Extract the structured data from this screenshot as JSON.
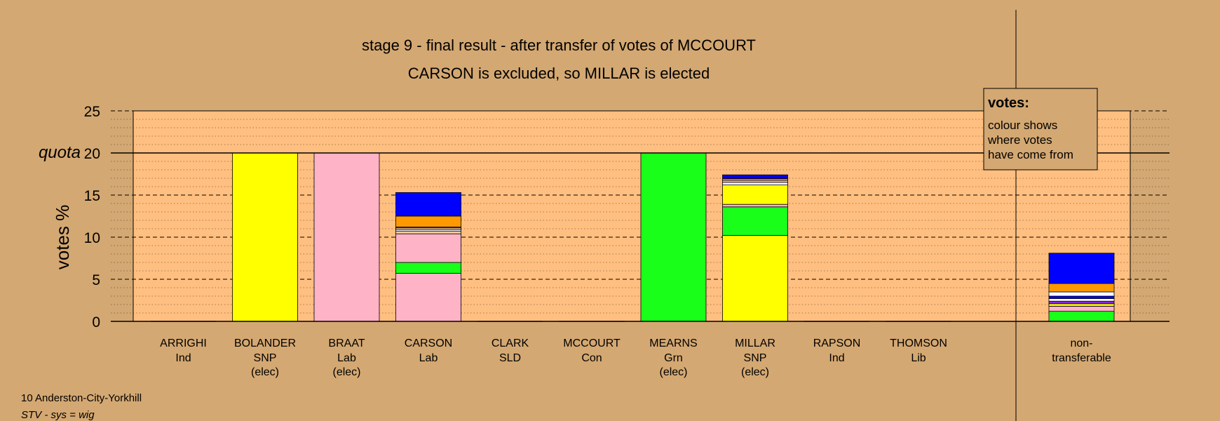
{
  "chart_data": {
    "type": "bar",
    "stacked": true,
    "title": "stage 9 - final result - after transfer of votes of MCCOURT",
    "subtitle": "CARSON is excluded, so MILLAR is elected",
    "ylabel": "votes %",
    "ylim": [
      0,
      25
    ],
    "yticks": [
      0,
      5,
      10,
      15,
      20,
      25
    ],
    "quota": 20,
    "quota_label": "quota",
    "grid": true,
    "legend": {
      "position": "top-right",
      "heading": "votes:",
      "lines": [
        "colour shows",
        "where votes",
        "have come from"
      ]
    },
    "colors": {
      "SNP": "#ffff00",
      "Lab": "#ffb3c6",
      "Grn": "#19ff19",
      "Lib": "#ff9900",
      "Con": "#0000ff",
      "Ind": "#ffffff",
      "SLD": "#8a2be2",
      "Other": "#ffcc99"
    },
    "candidates": [
      {
        "name": "ARRIGHI",
        "party": "Ind",
        "status": "",
        "segments": []
      },
      {
        "name": "BOLANDER",
        "party": "SNP",
        "status": "(elec)",
        "segments": [
          {
            "from": "SNP",
            "value": 20
          }
        ]
      },
      {
        "name": "BRAAT",
        "party": "Lab",
        "status": "(elec)",
        "segments": [
          {
            "from": "Lab",
            "value": 20
          }
        ]
      },
      {
        "name": "CARSON",
        "party": "Lab",
        "status": "",
        "segments": [
          {
            "from": "Lab",
            "value": 5.7
          },
          {
            "from": "Grn",
            "value": 1.3
          },
          {
            "from": "Lab",
            "value": 3.4
          },
          {
            "from": "Other",
            "value": 0.3
          },
          {
            "from": "Ind",
            "value": 0.2
          },
          {
            "from": "Other",
            "value": 0.2
          },
          {
            "from": "SLD",
            "value": 0.1
          },
          {
            "from": "Lib",
            "value": 1.3
          },
          {
            "from": "Con",
            "value": 2.8
          }
        ]
      },
      {
        "name": "CLARK",
        "party": "SLD",
        "status": "",
        "segments": []
      },
      {
        "name": "MCCOURT",
        "party": "Con",
        "status": "",
        "segments": []
      },
      {
        "name": "MEARNS",
        "party": "Grn",
        "status": "(elec)",
        "segments": [
          {
            "from": "Grn",
            "value": 20
          }
        ]
      },
      {
        "name": "MILLAR",
        "party": "SNP",
        "status": "(elec)",
        "segments": [
          {
            "from": "SNP",
            "value": 10.2
          },
          {
            "from": "Grn",
            "value": 3.4
          },
          {
            "from": "Lab",
            "value": 0.3
          },
          {
            "from": "SNP",
            "value": 2.3
          },
          {
            "from": "Ind",
            "value": 0.3
          },
          {
            "from": "Lab",
            "value": 0.2
          },
          {
            "from": "Other",
            "value": 0.2
          },
          {
            "from": "SLD",
            "value": 0.1
          },
          {
            "from": "Con",
            "value": 0.4
          }
        ]
      },
      {
        "name": "RAPSON",
        "party": "Ind",
        "status": "",
        "segments": []
      },
      {
        "name": "THOMSON",
        "party": "Lib",
        "status": "",
        "segments": []
      }
    ],
    "nontransferable": {
      "label_line1": "non-",
      "label_line2": "transferable",
      "segments": [
        {
          "from": "Grn",
          "value": 1.2
        },
        {
          "from": "Lab",
          "value": 0.6
        },
        {
          "from": "SNP",
          "value": 0.3
        },
        {
          "from": "SLD",
          "value": 0.3
        },
        {
          "from": "Ind",
          "value": 0.3
        },
        {
          "from": "Con",
          "value": 0.3
        },
        {
          "from": "Ind",
          "value": 0.5
        },
        {
          "from": "Lib",
          "value": 1.0
        },
        {
          "from": "Con",
          "value": 3.6
        }
      ]
    }
  },
  "footer": {
    "ward": "10 Anderston-City-Yorkhill",
    "system": "STV - sys = wig"
  }
}
